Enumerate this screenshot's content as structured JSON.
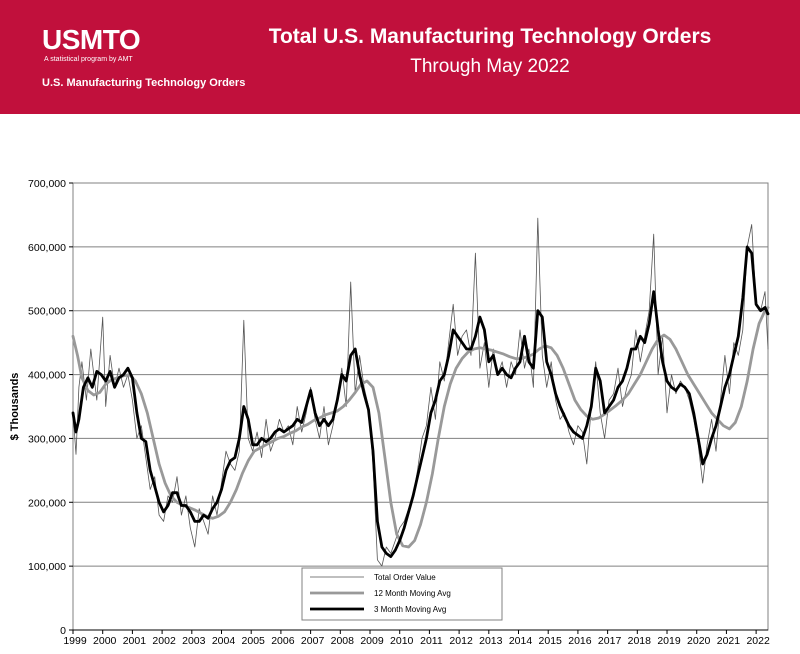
{
  "banner": {
    "logo": "USMTO",
    "logo_sub": "A statistical program by AMT",
    "brand_text": "U.S. Manufacturing Technology Orders",
    "color": "#c1103c"
  },
  "chart_data": {
    "type": "line",
    "title": "Total U.S. Manufacturing Technology Orders",
    "subtitle": "Through May 2022",
    "ylabel": "$ Thousands",
    "xlabel": "",
    "ylim": [
      0,
      700000
    ],
    "xlim": [
      1999.0,
      2022.4
    ],
    "grid": true,
    "legend_position": "bottom-center",
    "y_ticks": [
      "0",
      "100,000",
      "200,000",
      "300,000",
      "400,000",
      "500,000",
      "600,000",
      "700,000"
    ],
    "x_ticks": [
      "1999",
      "2000",
      "2001",
      "2002",
      "2003",
      "2004",
      "2005",
      "2006",
      "2007",
      "2008",
      "2009",
      "2010",
      "2011",
      "2012",
      "2013",
      "2014",
      "2015",
      "2016",
      "2017",
      "2018",
      "2019",
      "2020",
      "2021",
      "2022"
    ],
    "series": [
      {
        "name": "Total Order Value",
        "color": "#555555",
        "x": [
          1999.0,
          1999.1,
          1999.2,
          1999.3,
          1999.45,
          1999.6,
          1999.8,
          2000.0,
          2000.1,
          2000.25,
          2000.4,
          2000.55,
          2000.7,
          2000.85,
          2001.0,
          2001.15,
          2001.3,
          2001.45,
          2001.6,
          2001.75,
          2001.9,
          2002.05,
          2002.2,
          2002.35,
          2002.5,
          2002.65,
          2002.8,
          2002.95,
          2003.1,
          2003.25,
          2003.4,
          2003.55,
          2003.7,
          2003.85,
          2004.0,
          2004.15,
          2004.3,
          2004.45,
          2004.6,
          2004.75,
          2004.9,
          2005.05,
          2005.2,
          2005.35,
          2005.5,
          2005.65,
          2005.8,
          2005.95,
          2006.1,
          2006.25,
          2006.4,
          2006.55,
          2006.7,
          2006.85,
          2007.0,
          2007.15,
          2007.3,
          2007.45,
          2007.6,
          2007.75,
          2007.9,
          2008.05,
          2008.2,
          2008.35,
          2008.5,
          2008.65,
          2008.8,
          2008.95,
          2009.1,
          2009.25,
          2009.4,
          2009.55,
          2009.7,
          2009.85,
          2010.0,
          2010.15,
          2010.3,
          2010.45,
          2010.6,
          2010.75,
          2010.9,
          2011.05,
          2011.2,
          2011.35,
          2011.5,
          2011.65,
          2011.8,
          2011.95,
          2012.1,
          2012.25,
          2012.4,
          2012.55,
          2012.7,
          2012.85,
          2013.0,
          2013.15,
          2013.3,
          2013.45,
          2013.6,
          2013.75,
          2013.9,
          2014.05,
          2014.2,
          2014.35,
          2014.5,
          2014.65,
          2014.8,
          2014.95,
          2015.1,
          2015.25,
          2015.4,
          2015.55,
          2015.7,
          2015.85,
          2016.0,
          2016.15,
          2016.3,
          2016.45,
          2016.6,
          2016.75,
          2016.9,
          2017.05,
          2017.2,
          2017.35,
          2017.5,
          2017.65,
          2017.8,
          2017.95,
          2018.1,
          2018.25,
          2018.4,
          2018.55,
          2018.7,
          2018.85,
          2019.0,
          2019.15,
          2019.3,
          2019.45,
          2019.6,
          2019.75,
          2019.9,
          2020.05,
          2020.2,
          2020.35,
          2020.5,
          2020.65,
          2020.8,
          2020.95,
          2021.1,
          2021.25,
          2021.4,
          2021.55,
          2021.7,
          2021.85,
          2022.0,
          2022.15,
          2022.3,
          2022.4
        ],
        "values": [
          340000,
          275000,
          380000,
          420000,
          360000,
          440000,
          360000,
          490000,
          350000,
          430000,
          380000,
          410000,
          380000,
          400000,
          360000,
          300000,
          320000,
          270000,
          220000,
          240000,
          180000,
          170000,
          210000,
          200000,
          240000,
          180000,
          210000,
          160000,
          130000,
          190000,
          170000,
          150000,
          210000,
          180000,
          230000,
          280000,
          260000,
          250000,
          280000,
          485000,
          300000,
          280000,
          310000,
          270000,
          330000,
          280000,
          300000,
          330000,
          310000,
          320000,
          290000,
          350000,
          310000,
          340000,
          380000,
          330000,
          300000,
          350000,
          290000,
          320000,
          360000,
          410000,
          350000,
          545000,
          370000,
          430000,
          380000,
          350000,
          260000,
          110000,
          100000,
          130000,
          120000,
          140000,
          160000,
          170000,
          190000,
          210000,
          250000,
          300000,
          320000,
          380000,
          330000,
          420000,
          390000,
          450000,
          510000,
          430000,
          460000,
          470000,
          430000,
          590000,
          410000,
          450000,
          380000,
          440000,
          400000,
          420000,
          380000,
          420000,
          400000,
          470000,
          410000,
          440000,
          380000,
          645000,
          430000,
          380000,
          420000,
          360000,
          330000,
          340000,
          310000,
          290000,
          320000,
          310000,
          260000,
          350000,
          420000,
          340000,
          300000,
          360000,
          370000,
          410000,
          350000,
          380000,
          400000,
          470000,
          420000,
          460000,
          500000,
          620000,
          400000,
          460000,
          340000,
          400000,
          370000,
          390000,
          380000,
          360000,
          330000,
          290000,
          230000,
          290000,
          330000,
          280000,
          360000,
          430000,
          370000,
          450000,
          430000,
          470000,
          600000,
          635000,
          510000,
          500000,
          530000,
          440000
        ]
      },
      {
        "name": "12 Month Moving Avg",
        "color": "#999999",
        "x": [
          1999.0,
          1999.15,
          1999.3,
          1999.5,
          1999.7,
          1999.9,
          2000.1,
          2000.3,
          2000.5,
          2000.7,
          2000.9,
          2001.1,
          2001.3,
          2001.5,
          2001.7,
          2001.9,
          2002.1,
          2002.3,
          2002.5,
          2002.7,
          2002.9,
          2003.1,
          2003.3,
          2003.5,
          2003.7,
          2003.9,
          2004.1,
          2004.3,
          2004.5,
          2004.7,
          2004.9,
          2005.1,
          2005.3,
          2005.5,
          2005.7,
          2005.9,
          2006.1,
          2006.3,
          2006.5,
          2006.7,
          2006.9,
          2007.1,
          2007.3,
          2007.5,
          2007.7,
          2007.9,
          2008.1,
          2008.3,
          2008.5,
          2008.7,
          2008.9,
          2009.1,
          2009.3,
          2009.5,
          2009.7,
          2009.9,
          2010.1,
          2010.3,
          2010.5,
          2010.7,
          2010.9,
          2011.1,
          2011.3,
          2011.5,
          2011.7,
          2011.9,
          2012.1,
          2012.3,
          2012.5,
          2012.7,
          2012.9,
          2013.1,
          2013.3,
          2013.5,
          2013.7,
          2013.9,
          2014.1,
          2014.3,
          2014.5,
          2014.7,
          2014.9,
          2015.1,
          2015.3,
          2015.5,
          2015.7,
          2015.9,
          2016.1,
          2016.3,
          2016.5,
          2016.7,
          2016.9,
          2017.1,
          2017.3,
          2017.5,
          2017.7,
          2017.9,
          2018.1,
          2018.3,
          2018.5,
          2018.7,
          2018.9,
          2019.1,
          2019.3,
          2019.5,
          2019.7,
          2019.9,
          2020.1,
          2020.3,
          2020.5,
          2020.7,
          2020.9,
          2021.1,
          2021.3,
          2021.5,
          2021.7,
          2021.9,
          2022.1,
          2022.3,
          2022.4
        ],
        "values": [
          460000,
          430000,
          395000,
          375000,
          368000,
          372000,
          385000,
          392000,
          395000,
          398000,
          400000,
          390000,
          370000,
          340000,
          300000,
          260000,
          230000,
          210000,
          200000,
          195000,
          192000,
          188000,
          183000,
          178000,
          175000,
          178000,
          185000,
          200000,
          220000,
          245000,
          265000,
          280000,
          285000,
          290000,
          295000,
          300000,
          303000,
          308000,
          312000,
          318000,
          322000,
          328000,
          332000,
          337000,
          340000,
          343000,
          350000,
          360000,
          372000,
          385000,
          390000,
          380000,
          340000,
          270000,
          200000,
          150000,
          132000,
          130000,
          140000,
          165000,
          200000,
          245000,
          300000,
          350000,
          385000,
          410000,
          425000,
          435000,
          440000,
          442000,
          440000,
          438000,
          435000,
          432000,
          428000,
          425000,
          425000,
          428000,
          432000,
          440000,
          445000,
          442000,
          430000,
          410000,
          385000,
          360000,
          345000,
          335000,
          330000,
          332000,
          338000,
          345000,
          352000,
          360000,
          370000,
          385000,
          400000,
          420000,
          440000,
          455000,
          462000,
          455000,
          440000,
          420000,
          400000,
          385000,
          370000,
          355000,
          340000,
          330000,
          320000,
          315000,
          325000,
          350000,
          390000,
          440000,
          480000,
          500000,
          505000
        ]
      },
      {
        "name": "3 Month Moving Avg",
        "color": "#000000",
        "x": [
          1999.0,
          1999.1,
          1999.2,
          1999.35,
          1999.5,
          1999.65,
          1999.8,
          1999.95,
          2000.1,
          2000.25,
          2000.4,
          2000.55,
          2000.7,
          2000.85,
          2001.0,
          2001.15,
          2001.3,
          2001.45,
          2001.6,
          2001.75,
          2001.9,
          2002.05,
          2002.2,
          2002.35,
          2002.5,
          2002.65,
          2002.8,
          2002.95,
          2003.1,
          2003.25,
          2003.4,
          2003.55,
          2003.7,
          2003.85,
          2004.0,
          2004.15,
          2004.3,
          2004.45,
          2004.6,
          2004.75,
          2004.9,
          2005.05,
          2005.2,
          2005.35,
          2005.5,
          2005.65,
          2005.8,
          2005.95,
          2006.1,
          2006.25,
          2006.4,
          2006.55,
          2006.7,
          2006.85,
          2007.0,
          2007.15,
          2007.3,
          2007.45,
          2007.6,
          2007.75,
          2007.9,
          2008.05,
          2008.2,
          2008.35,
          2008.5,
          2008.65,
          2008.8,
          2008.95,
          2009.1,
          2009.25,
          2009.4,
          2009.55,
          2009.7,
          2009.85,
          2010.0,
          2010.15,
          2010.3,
          2010.45,
          2010.6,
          2010.75,
          2010.9,
          2011.05,
          2011.2,
          2011.35,
          2011.5,
          2011.65,
          2011.8,
          2011.95,
          2012.1,
          2012.25,
          2012.4,
          2012.55,
          2012.7,
          2012.85,
          2013.0,
          2013.15,
          2013.3,
          2013.45,
          2013.6,
          2013.75,
          2013.9,
          2014.05,
          2014.2,
          2014.35,
          2014.5,
          2014.65,
          2014.8,
          2014.95,
          2015.1,
          2015.25,
          2015.4,
          2015.55,
          2015.7,
          2015.85,
          2016.0,
          2016.15,
          2016.3,
          2016.45,
          2016.6,
          2016.75,
          2016.9,
          2017.05,
          2017.2,
          2017.35,
          2017.5,
          2017.65,
          2017.8,
          2017.95,
          2018.1,
          2018.25,
          2018.4,
          2018.55,
          2018.7,
          2018.85,
          2019.0,
          2019.15,
          2019.3,
          2019.45,
          2019.6,
          2019.75,
          2019.9,
          2020.05,
          2020.2,
          2020.35,
          2020.5,
          2020.65,
          2020.8,
          2020.95,
          2021.1,
          2021.25,
          2021.4,
          2021.55,
          2021.7,
          2021.85,
          2022.0,
          2022.15,
          2022.3,
          2022.4
        ],
        "values": [
          340000,
          310000,
          330000,
          380000,
          395000,
          380000,
          405000,
          400000,
          390000,
          405000,
          380000,
          395000,
          400000,
          410000,
          395000,
          340000,
          300000,
          295000,
          250000,
          225000,
          200000,
          185000,
          195000,
          215000,
          215000,
          195000,
          195000,
          185000,
          170000,
          170000,
          180000,
          175000,
          190000,
          200000,
          220000,
          250000,
          265000,
          270000,
          300000,
          350000,
          330000,
          290000,
          290000,
          300000,
          295000,
          300000,
          310000,
          315000,
          310000,
          315000,
          320000,
          330000,
          325000,
          350000,
          375000,
          340000,
          320000,
          330000,
          320000,
          330000,
          360000,
          400000,
          390000,
          430000,
          440000,
          400000,
          370000,
          345000,
          280000,
          170000,
          130000,
          120000,
          115000,
          125000,
          140000,
          160000,
          185000,
          210000,
          240000,
          270000,
          300000,
          340000,
          360000,
          390000,
          400000,
          430000,
          470000,
          460000,
          450000,
          440000,
          440000,
          460000,
          490000,
          470000,
          420000,
          430000,
          400000,
          410000,
          400000,
          395000,
          410000,
          420000,
          460000,
          420000,
          410000,
          500000,
          490000,
          420000,
          400000,
          370000,
          350000,
          335000,
          320000,
          310000,
          305000,
          300000,
          320000,
          350000,
          410000,
          390000,
          340000,
          350000,
          360000,
          380000,
          390000,
          410000,
          440000,
          440000,
          460000,
          450000,
          480000,
          530000,
          470000,
          420000,
          390000,
          380000,
          375000,
          385000,
          380000,
          370000,
          340000,
          300000,
          260000,
          275000,
          300000,
          320000,
          350000,
          380000,
          400000,
          430000,
          460000,
          520000,
          600000,
          590000,
          510000,
          500000,
          505000,
          495000
        ]
      }
    ]
  }
}
